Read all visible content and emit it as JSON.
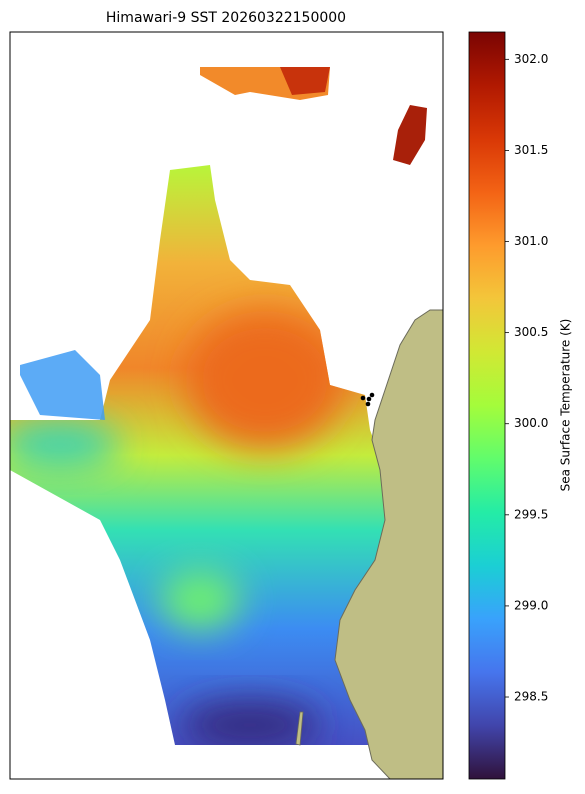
{
  "chart_data": {
    "type": "map",
    "title": "Himawari-9 SST 20260322150000",
    "colorbar": {
      "label": "Sea Surface Temperature (K)",
      "lim": [
        298.05,
        302.15
      ],
      "ticks": [
        298.5,
        {
          "value": 299,
          "label": "299.0"
        },
        299.5,
        {
          "value": 300,
          "label": "300.0"
        },
        300.5,
        {
          "value": 301,
          "label": "301.0"
        },
        301.5,
        {
          "value": 302,
          "label": "302.0"
        }
      ],
      "colormap": [
        "#30123b",
        "#4145ab",
        "#4675ed",
        "#39a2fc",
        "#1bcfd4",
        "#24eca6",
        "#61fc6c",
        "#a4fc3b",
        "#d1e834",
        "#f3c63a",
        "#fe9b2d",
        "#f36315",
        "#d93806",
        "#b11901",
        "#7a0403"
      ]
    }
  }
}
